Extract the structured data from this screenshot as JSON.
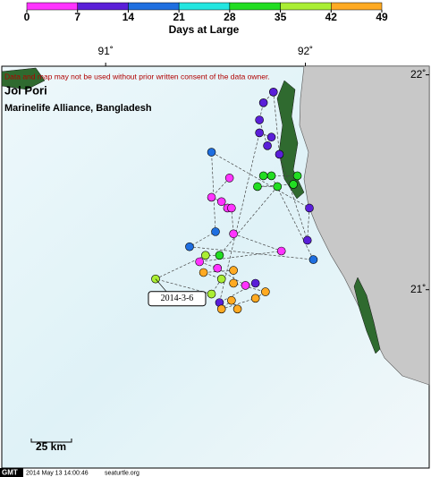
{
  "colorbar": {
    "ticks": [
      0,
      7,
      14,
      21,
      28,
      35,
      42,
      49
    ],
    "colors": [
      "#ff33ff",
      "#5a1fd8",
      "#1f6fe0",
      "#22e6e0",
      "#22dd22",
      "#aaee33",
      "#ffaa22"
    ],
    "label": "Days at Large"
  },
  "map": {
    "xlim": [
      90.48,
      92.62
    ],
    "ylim": [
      20.17,
      22.04
    ],
    "xticks": [
      {
        "value": 91,
        "label": "91˚"
      },
      {
        "value": 92,
        "label": "92˚"
      }
    ],
    "yticks": [
      {
        "value": 22,
        "label": "22˚"
      },
      {
        "value": 21,
        "label": "21˚"
      }
    ],
    "notice": "Data and map may not be used without prior written consent of the data owner.",
    "title": "Jol Pori",
    "subtitle": "Marinelife Alliance, Bangladesh",
    "callout": {
      "lon": 91.25,
      "lat": 21.05,
      "label": "2014-3-6"
    },
    "scale_label": "25 km",
    "points": {
      "lon": [
        91.62,
        91.53,
        91.58,
        91.61,
        91.63,
        91.64,
        91.88,
        91.47,
        91.56,
        91.7,
        91.75,
        91.57,
        91.77,
        91.83,
        91.81,
        91.77,
        91.79,
        91.84,
        91.87,
        92.01,
        92.02,
        91.53,
        91.55,
        91.42,
        92.04,
        91.83,
        91.79,
        91.96,
        91.94,
        91.76,
        91.86,
        91.57,
        91.5,
        91.25,
        91.53,
        91.58,
        91.49,
        91.64,
        91.64,
        91.8,
        91.75,
        91.58,
        91.63,
        91.66
      ],
      "lat": [
        21.52,
        21.43,
        21.41,
        21.38,
        21.38,
        21.26,
        21.18,
        21.13,
        21.1,
        21.02,
        21.03,
        20.94,
        21.73,
        21.71,
        21.67,
        21.79,
        21.87,
        21.92,
        21.63,
        21.23,
        21.38,
        21.64,
        21.27,
        21.2,
        21.14,
        21.53,
        21.53,
        21.53,
        21.49,
        21.48,
        21.48,
        21.16,
        21.16,
        21.05,
        20.98,
        21.05,
        21.08,
        21.09,
        21.03,
        20.99,
        20.96,
        20.91,
        20.95,
        20.91
      ],
      "days": [
        3,
        3,
        3,
        3,
        3,
        3,
        3,
        3,
        3,
        3,
        10,
        10,
        10,
        10,
        10,
        10,
        10,
        10,
        10,
        10,
        10,
        17,
        17,
        17,
        17,
        31,
        31,
        31,
        31,
        31,
        31,
        31,
        38,
        38,
        38,
        38,
        45,
        45,
        45,
        45,
        45,
        45,
        45,
        45
      ]
    }
  },
  "footer": {
    "logo": "GMT",
    "timestamp": "2014 May 13 14:00:46",
    "site": "seaturtle.org"
  }
}
